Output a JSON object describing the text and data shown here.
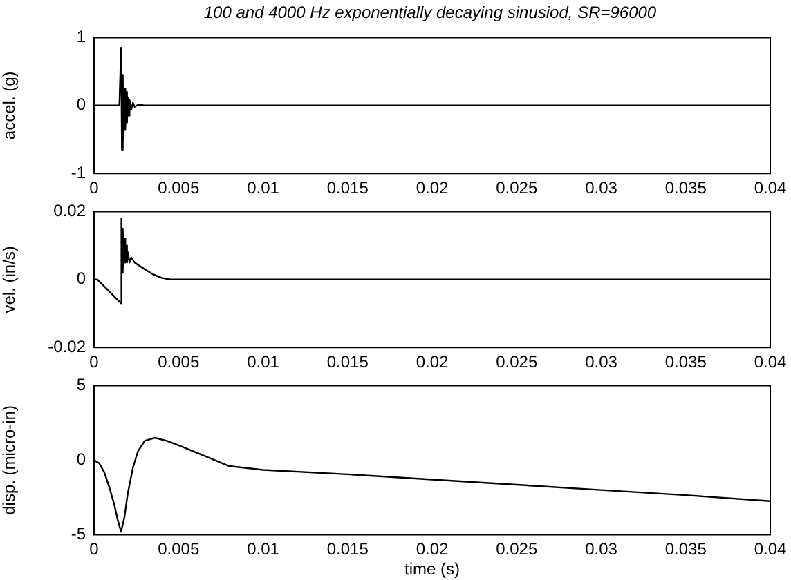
{
  "chart_data": [
    {
      "type": "line",
      "title": "100 and 4000 Hz exponentially decaying sinusiod, SR=96000",
      "ylabel": "accel. (g)",
      "color": "#000000",
      "grid": false,
      "legend": false,
      "xlim": [
        0,
        0.04
      ],
      "xticks": [
        0,
        0.005,
        0.01,
        0.015,
        0.02,
        0.025,
        0.03,
        0.035,
        0.04
      ],
      "ylim": [
        -1,
        1
      ],
      "yticks": [
        -1,
        0,
        1
      ],
      "x": [
        0,
        0.0015,
        0.0016,
        0.00165,
        0.0017,
        0.00175,
        0.0018,
        0.00185,
        0.0019,
        0.00195,
        0.002,
        0.00205,
        0.0021,
        0.0022,
        0.0023,
        0.0024,
        0.0026,
        0.003,
        0.04
      ],
      "values": [
        0,
        0,
        0.85,
        -0.65,
        0.45,
        -0.5,
        0.25,
        -0.35,
        0.2,
        -0.25,
        0.12,
        -0.15,
        0.08,
        -0.06,
        0.04,
        -0.02,
        0.01,
        0,
        0
      ]
    },
    {
      "type": "line",
      "ylabel": "vel. (in/s)",
      "color": "#000000",
      "grid": false,
      "legend": false,
      "xlim": [
        0,
        0.04
      ],
      "xticks": [
        0,
        0.005,
        0.01,
        0.015,
        0.02,
        0.025,
        0.03,
        0.035,
        0.04
      ],
      "ylim": [
        -0.02,
        0.02
      ],
      "yticks": [
        -0.02,
        0,
        0.02
      ],
      "x": [
        0,
        0.0002,
        0.0016,
        0.00162,
        0.00167,
        0.0017,
        0.00175,
        0.0018,
        0.00185,
        0.0019,
        0.00195,
        0.002,
        0.0021,
        0.0022,
        0.0024,
        0.003,
        0.0035,
        0.004,
        0.0045,
        0.04
      ],
      "values": [
        0,
        0,
        -0.007,
        0.018,
        0.002,
        0.015,
        0.004,
        0.012,
        0.005,
        0.01,
        0.005,
        0.008,
        0.005,
        0.0065,
        0.005,
        0.003,
        0.0015,
        0.0005,
        0,
        0
      ]
    },
    {
      "type": "line",
      "xlabel": "time (s)",
      "ylabel": "disp. (micro-in)",
      "color": "#000000",
      "grid": false,
      "legend": false,
      "xlim": [
        0,
        0.04
      ],
      "xticks": [
        0,
        0.005,
        0.01,
        0.015,
        0.02,
        0.025,
        0.03,
        0.035,
        0.04
      ],
      "ylim": [
        -5,
        5
      ],
      "yticks": [
        -5,
        0,
        5
      ],
      "x": [
        0,
        0.0003,
        0.0006,
        0.0009,
        0.0012,
        0.0014,
        0.0016,
        0.0018,
        0.002,
        0.0023,
        0.0026,
        0.003,
        0.0036,
        0.0043,
        0.005,
        0.0065,
        0.008,
        0.01,
        0.015,
        0.02,
        0.025,
        0.03,
        0.035,
        0.04
      ],
      "values": [
        0,
        -0.2,
        -0.8,
        -1.8,
        -3,
        -4,
        -4.8,
        -3.8,
        -2.2,
        -0.5,
        0.6,
        1.3,
        1.5,
        1.3,
        1,
        0.3,
        -0.4,
        -0.65,
        -0.95,
        -1.3,
        -1.65,
        -2,
        -2.35,
        -2.75
      ]
    }
  ]
}
